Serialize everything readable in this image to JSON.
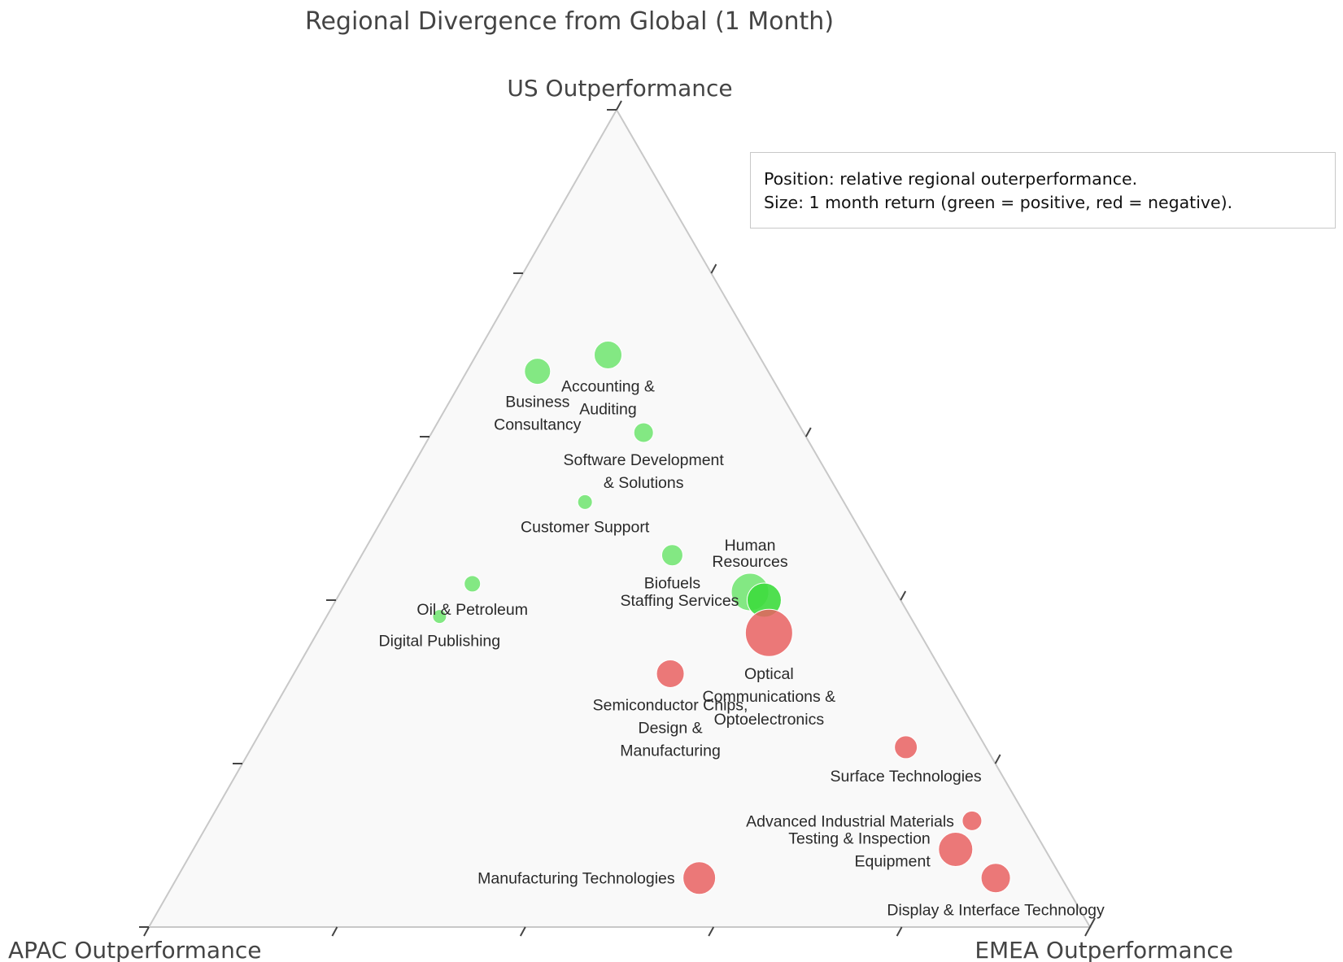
{
  "chart_data": {
    "type": "scatter",
    "subtype": "ternary",
    "title": "Regional Divergence from Global (1 Month)",
    "axes": {
      "a": "US Outperformance",
      "b": "APAC Outperformance",
      "c": "EMEA Outperformance"
    },
    "annotation": {
      "line1": "Position: relative regional outerperformance.",
      "line2": "Size: 1 month return (green = positive, red = negative)."
    },
    "colors": {
      "positive": "#6ee56e",
      "positive_strong": "#3ddc3d",
      "negative": "#e96262",
      "triangle_fill": "#f9f9f9",
      "triangle_edge": "#c8c8c8"
    },
    "points": [
      {
        "label": "Accounting & Auditing",
        "lines": [
          "Accounting &",
          "Auditing"
        ],
        "a": 0.7,
        "b": 0.16,
        "c": 0.14,
        "size": 34,
        "sign": "positive",
        "label_pos": "below"
      },
      {
        "label": "Business Consultancy",
        "lines": [
          "Business",
          "Consultancy"
        ],
        "a": 0.68,
        "b": 0.245,
        "c": 0.075,
        "size": 32,
        "sign": "positive",
        "label_pos": "below"
      },
      {
        "label": "Software Development & Solutions",
        "lines": [
          "Software Development",
          "& Solutions"
        ],
        "a": 0.605,
        "b": 0.17,
        "c": 0.225,
        "size": 24,
        "sign": "positive",
        "label_pos": "below"
      },
      {
        "label": "Customer Support",
        "lines": [
          "Customer Support"
        ],
        "a": 0.52,
        "b": 0.275,
        "c": 0.205,
        "size": 18,
        "sign": "positive",
        "label_pos": "below"
      },
      {
        "label": "Biofuels",
        "lines": [
          "Biofuels"
        ],
        "a": 0.455,
        "b": 0.215,
        "c": 0.33,
        "size": 26,
        "sign": "positive",
        "label_pos": "below"
      },
      {
        "label": "Human Resources",
        "lines": [
          "Human",
          "Resources"
        ],
        "a": 0.41,
        "b": 0.155,
        "c": 0.435,
        "size": 46,
        "sign": "positive",
        "label_pos": "above"
      },
      {
        "label": "Staffing Services",
        "lines": [
          "Staffing Services"
        ],
        "a": 0.4,
        "b": 0.145,
        "c": 0.455,
        "size": 42,
        "sign": "positive_strong",
        "label_pos": "left"
      },
      {
        "label": "Oil & Petroleum",
        "lines": [
          "Oil & Petroleum"
        ],
        "a": 0.42,
        "b": 0.445,
        "c": 0.135,
        "size": 20,
        "sign": "positive",
        "label_pos": "below"
      },
      {
        "label": "Digital Publishing",
        "lines": [
          "Digital Publishing"
        ],
        "a": 0.38,
        "b": 0.5,
        "c": 0.12,
        "size": 17,
        "sign": "positive",
        "label_pos": "below"
      },
      {
        "label": "Optical Communications & Optoelectronics",
        "lines": [
          "Optical",
          "Communications &",
          "Optoelectronics"
        ],
        "a": 0.36,
        "b": 0.16,
        "c": 0.48,
        "size": 58,
        "sign": "negative",
        "label_pos": "below"
      },
      {
        "label": "Semiconductor Chips, Design & Manufacturing",
        "lines": [
          "Semiconductor Chips,",
          "Design &",
          "Manufacturing"
        ],
        "a": 0.31,
        "b": 0.29,
        "c": 0.4,
        "size": 34,
        "sign": "negative",
        "label_pos": "below"
      },
      {
        "label": "Surface Technologies",
        "lines": [
          "Surface Technologies"
        ],
        "a": 0.22,
        "b": 0.085,
        "c": 0.695,
        "size": 28,
        "sign": "negative",
        "label_pos": "below"
      },
      {
        "label": "Advanced Industrial Materials",
        "lines": [
          "Advanced Industrial Materials"
        ],
        "a": 0.13,
        "b": 0.06,
        "c": 0.81,
        "size": 24,
        "sign": "negative",
        "label_pos": "left"
      },
      {
        "label": "Testing & Inspection Equipment",
        "lines": [
          "Testing & Inspection",
          "Equipment"
        ],
        "a": 0.095,
        "b": 0.095,
        "c": 0.81,
        "size": 42,
        "sign": "negative",
        "label_pos": "left"
      },
      {
        "label": "Manufacturing Technologies",
        "lines": [
          "Manufacturing Technologies"
        ],
        "a": 0.06,
        "b": 0.385,
        "c": 0.555,
        "size": 40,
        "sign": "negative",
        "label_pos": "left"
      },
      {
        "label": "Display & Interface Technology",
        "lines": [
          "Display & Interface Technology"
        ],
        "a": 0.06,
        "b": 0.07,
        "c": 0.87,
        "size": 36,
        "sign": "negative",
        "label_pos": "below"
      }
    ]
  }
}
